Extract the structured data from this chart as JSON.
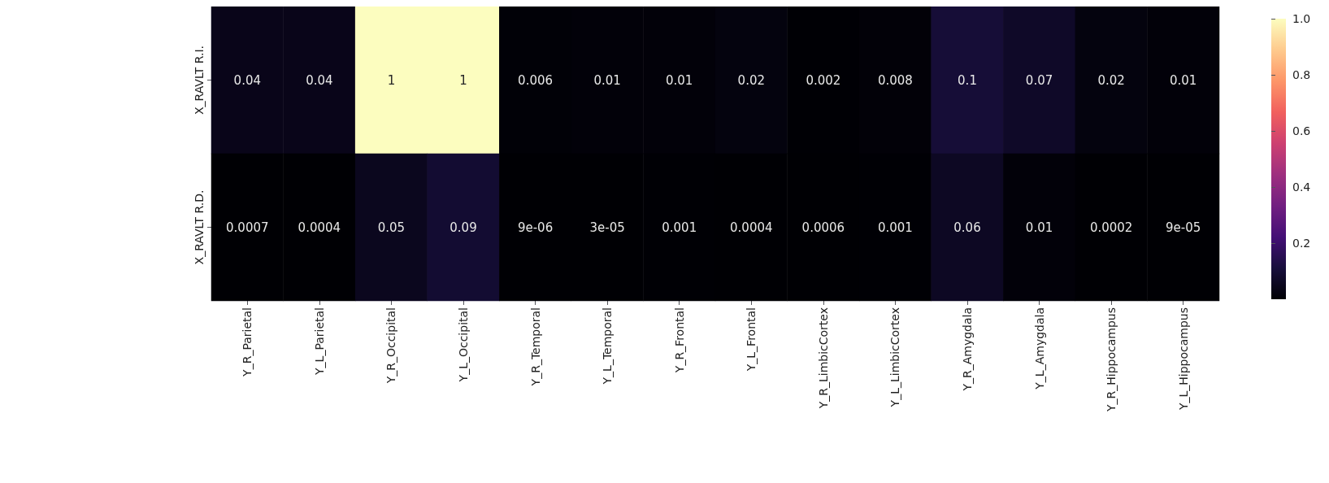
{
  "chart_data": {
    "type": "heatmap",
    "categories": [
      "Y_R_Parietal",
      "Y_L_Parietal",
      "Y_R_Occipital",
      "Y_L_Occipital",
      "Y_R_Temporal",
      "Y_L_Temporal",
      "Y_R_Frontal",
      "Y_L_Frontal",
      "Y_R_LimbicCortex",
      "Y_L_LimbicCortex",
      "Y_R_Amygdala",
      "Y_L_Amygdala",
      "Y_R_Hippocampus",
      "Y_L_Hippocampus"
    ],
    "y_categories": [
      "X_RAVLT R.I.",
      "X_RAVLT R.D."
    ],
    "cells": [
      [
        0.04,
        0.04,
        1,
        1,
        0.006,
        0.01,
        0.01,
        0.02,
        0.002,
        0.008,
        0.1,
        0.07,
        0.02,
        0.01
      ],
      [
        0.0007,
        0.0004,
        0.05,
        0.09,
        9e-06,
        3e-05,
        0.001,
        0.0004,
        0.0006,
        0.001,
        0.06,
        0.01,
        0.0002,
        9e-05
      ]
    ],
    "cell_labels": [
      [
        "0.04",
        "0.04",
        "1",
        "1",
        "0.006",
        "0.01",
        "0.01",
        "0.02",
        "0.002",
        "0.008",
        "0.1",
        "0.07",
        "0.02",
        "0.01"
      ],
      [
        "0.0007",
        "0.0004",
        "0.05",
        "0.09",
        "9e-06",
        "3e-05",
        "0.001",
        "0.0004",
        "0.0006",
        "0.001",
        "0.06",
        "0.01",
        "0.0002",
        "9e-05"
      ]
    ],
    "clim": [
      9e-06,
      1
    ],
    "cticks": [
      {
        "value": 0.2,
        "label": "0.2"
      },
      {
        "value": 0.4,
        "label": "0.4"
      },
      {
        "value": 0.6,
        "label": "0.6"
      },
      {
        "value": 0.8,
        "label": "0.8"
      },
      {
        "value": 1,
        "label": "1.0"
      }
    ]
  }
}
